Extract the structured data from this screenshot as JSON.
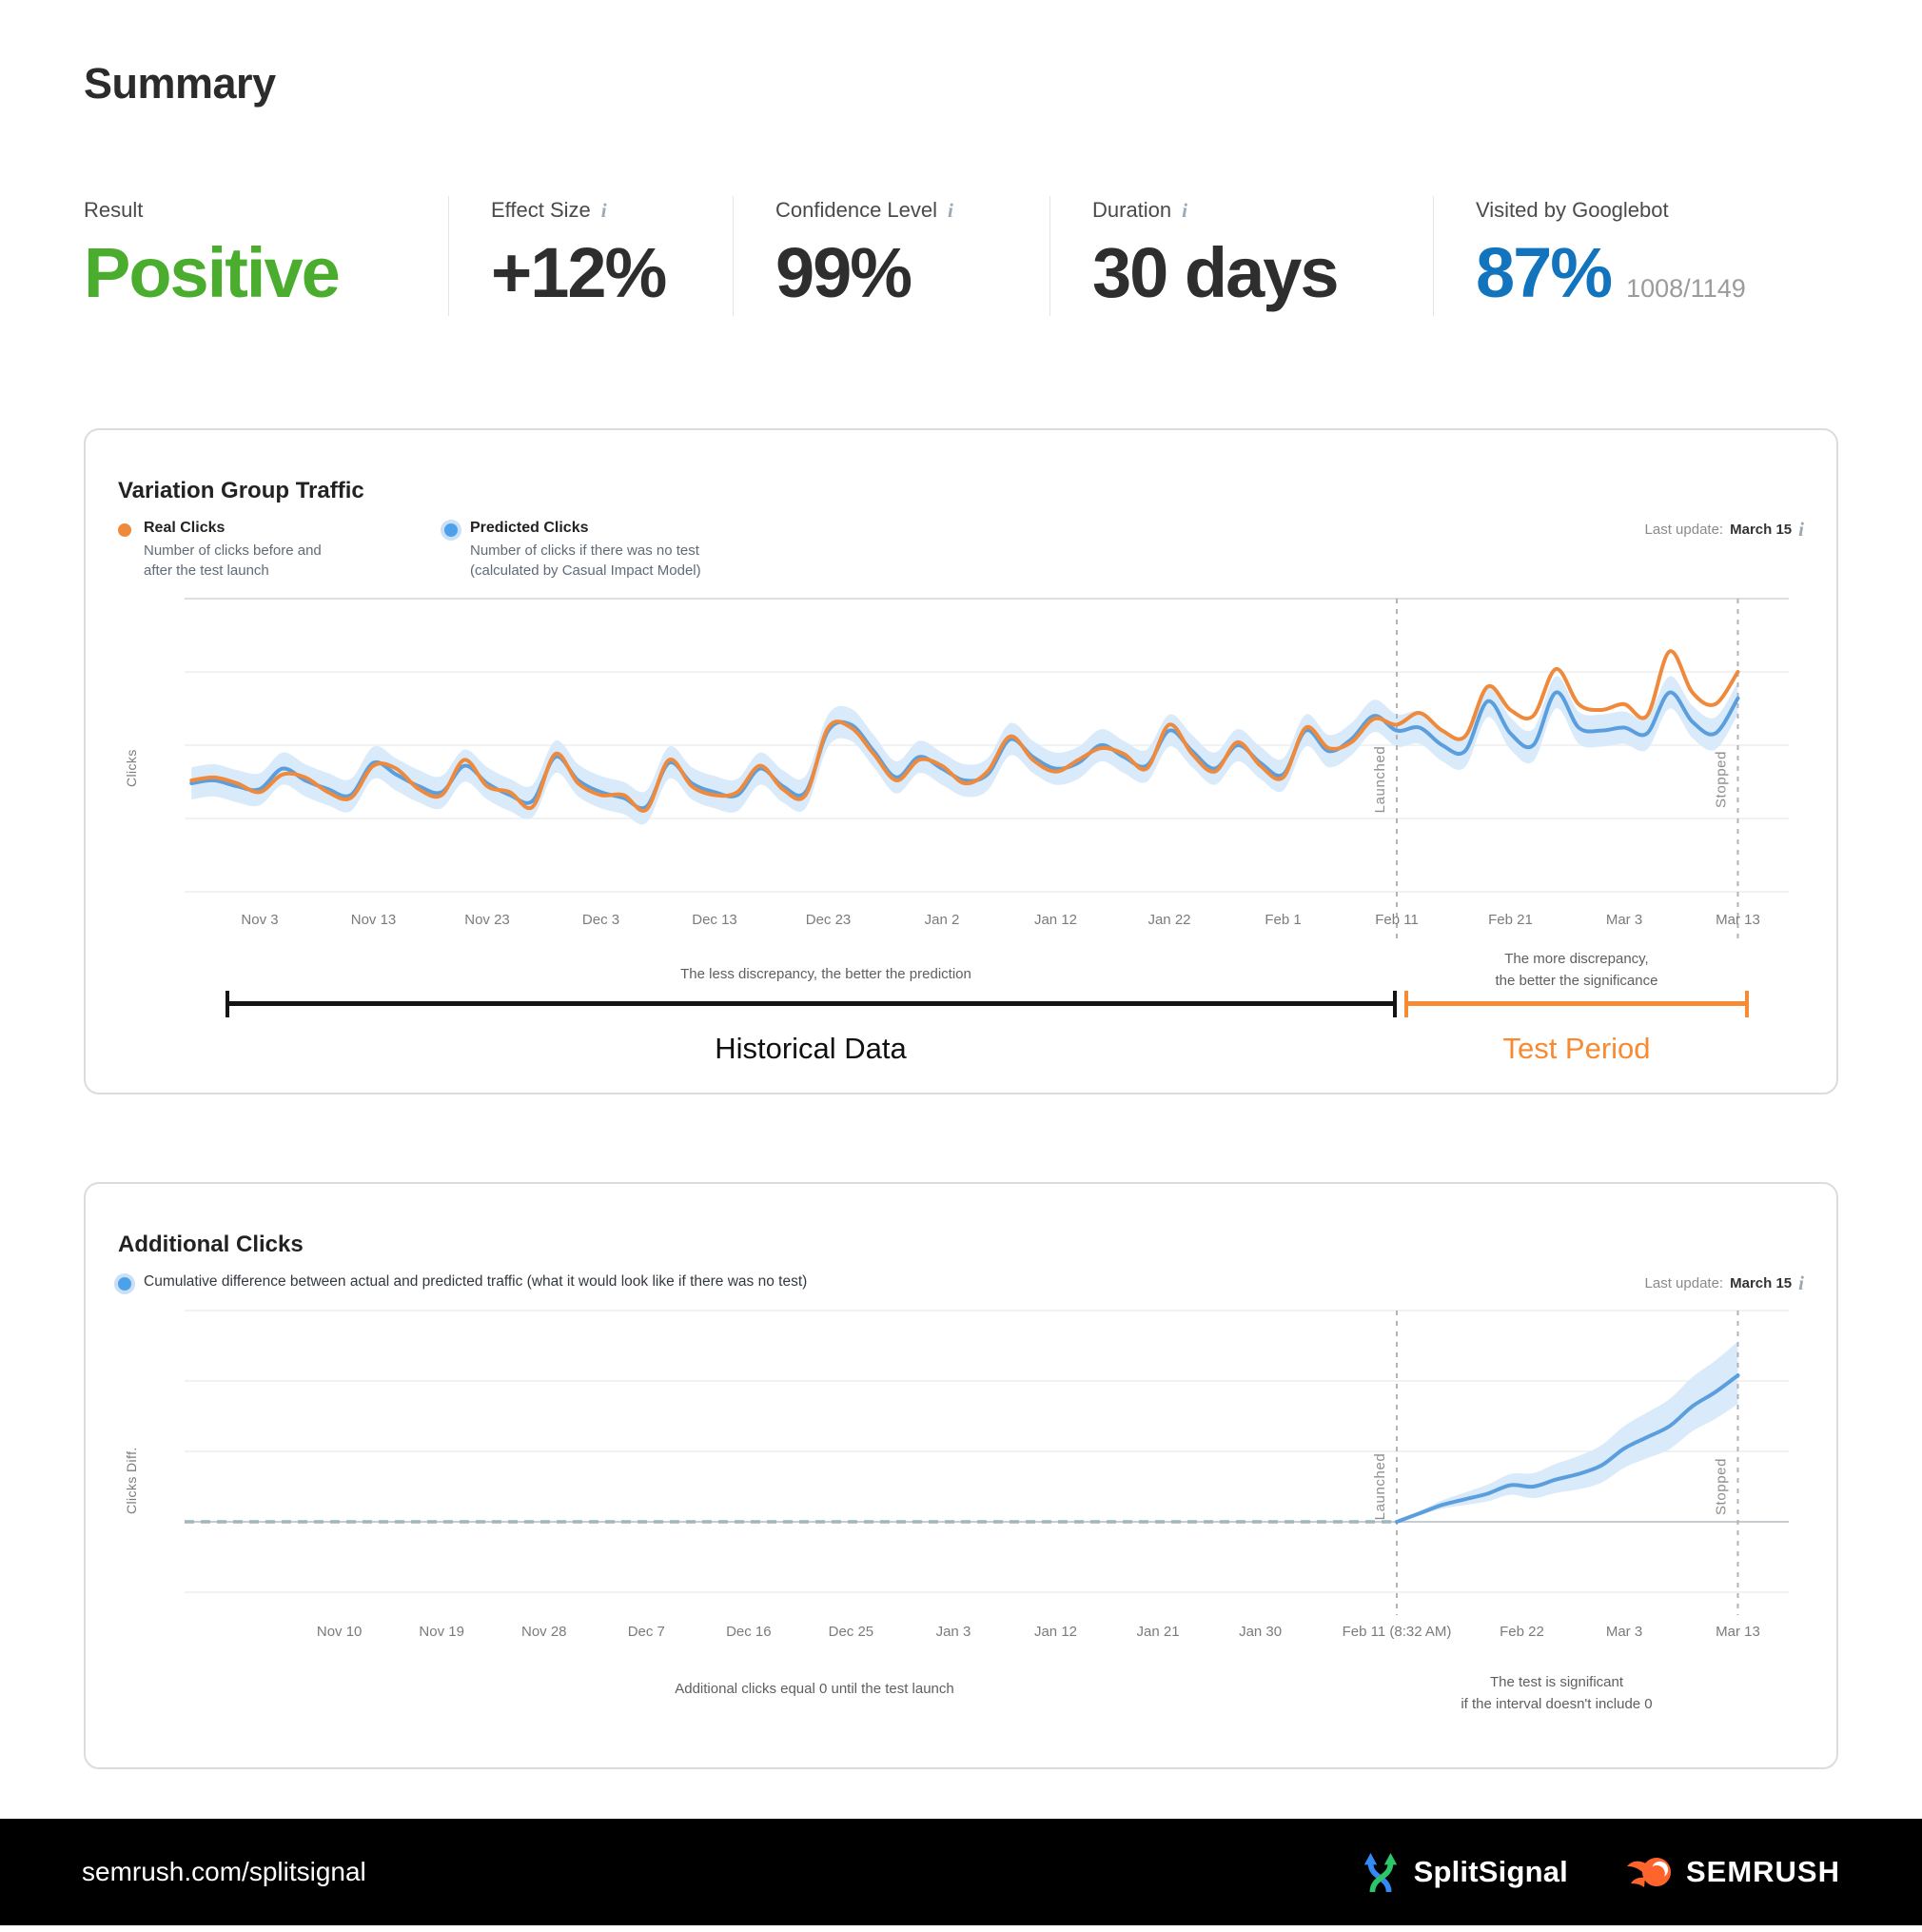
{
  "header": {
    "title": "Summary"
  },
  "icons": {
    "info": "i"
  },
  "metrics": [
    {
      "label": "Result",
      "value": "Positive"
    },
    {
      "label": "Effect Size",
      "value": "+12%"
    },
    {
      "label": "Confidence Level",
      "value": "99%"
    },
    {
      "label": "Duration",
      "value": "30 days"
    },
    {
      "label": "Visited by Googlebot",
      "value": "87%",
      "sub": "1008/1149"
    }
  ],
  "colors": {
    "positive_green": "#4aad2d",
    "googlebot_blue": "#1274bd",
    "real_clicks_orange": "#ef8a3c",
    "predicted_clicks_blue": "#5b9edd",
    "confidence_band": "#d9eafb",
    "test_period_orange": "#f78b33"
  },
  "card1": {
    "title": "Variation Group Traffic",
    "legend": [
      {
        "label": "Real Clicks",
        "desc": "Number of clicks before and after the test launch"
      },
      {
        "label": "Predicted Clicks",
        "desc": "Number of clicks if there was no test (calculated by Casual Impact Model)"
      }
    ],
    "last_update_label": "Last update:",
    "last_update_value": "March 15",
    "ylabel": "Clicks",
    "annotation_left": "The less discrepancy, the better the prediction",
    "annotation_right_1": "The more discrepancy,",
    "annotation_right_2": "the better the significance",
    "historical_label": "Historical Data",
    "test_label": "Test Period"
  },
  "card2": {
    "title": "Additional Clicks",
    "legend_desc": "Cumulative difference between actual and predicted traffic (what it would look like if there was no test)",
    "last_update_label": "Last update:",
    "last_update_value": "March 15",
    "ylabel": "Clicks Diff.",
    "annotation_center": "Additional clicks equal 0 until the test launch",
    "annotation_right_1": "The test is significant",
    "annotation_right_2": "if the interval doesn't include 0"
  },
  "footer": {
    "url": "semrush.com/splitsignal",
    "splitsignal": "SplitSignal",
    "semrush": "SEMRUSH"
  },
  "chart_data": [
    {
      "type": "line",
      "title": "Variation Group Traffic",
      "ylabel": "Clicks",
      "x_axis": "day offset (0 = Nov 3)",
      "ticks": [
        [
          0,
          "Nov 3"
        ],
        [
          10,
          "Nov 13"
        ],
        [
          20,
          "Nov 23"
        ],
        [
          30,
          "Dec 3"
        ],
        [
          40,
          "Dec 13"
        ],
        [
          50,
          "Dec 23"
        ],
        [
          60,
          "Jan 2"
        ],
        [
          70,
          "Jan 12"
        ],
        [
          80,
          "Jan 22"
        ],
        [
          90,
          "Feb 1"
        ],
        [
          100,
          "Feb 11"
        ],
        [
          110,
          "Feb 21"
        ],
        [
          120,
          "Mar 3"
        ],
        [
          130,
          "Mar 13"
        ]
      ],
      "launched": {
        "day": 100,
        "label": "Launched"
      },
      "stopped": {
        "day": 130,
        "label": "Stopped"
      },
      "band_color": "#d9eafb",
      "series": [
        {
          "name": "Real Clicks",
          "color": "#ef8a3c",
          "points": [
            [
              -6,
              38
            ],
            [
              -4,
              39
            ],
            [
              -2,
              37
            ],
            [
              0,
              34
            ],
            [
              2,
              40
            ],
            [
              4,
              39
            ],
            [
              6,
              34
            ],
            [
              8,
              32
            ],
            [
              10,
              43
            ],
            [
              12,
              42
            ],
            [
              14,
              35
            ],
            [
              16,
              33
            ],
            [
              18,
              45
            ],
            [
              20,
              36
            ],
            [
              22,
              34
            ],
            [
              24,
              29
            ],
            [
              26,
              47
            ],
            [
              28,
              37
            ],
            [
              30,
              33
            ],
            [
              32,
              33
            ],
            [
              34,
              28
            ],
            [
              36,
              45
            ],
            [
              38,
              36
            ],
            [
              40,
              33
            ],
            [
              42,
              34
            ],
            [
              44,
              43
            ],
            [
              46,
              35
            ],
            [
              48,
              33
            ],
            [
              50,
              56
            ],
            [
              52,
              56
            ],
            [
              54,
              47
            ],
            [
              56,
              38
            ],
            [
              58,
              45
            ],
            [
              60,
              43
            ],
            [
              62,
              37
            ],
            [
              64,
              41
            ],
            [
              66,
              53
            ],
            [
              68,
              45
            ],
            [
              70,
              41
            ],
            [
              72,
              45
            ],
            [
              74,
              49
            ],
            [
              76,
              47
            ],
            [
              78,
              42
            ],
            [
              80,
              57
            ],
            [
              82,
              47
            ],
            [
              84,
              41
            ],
            [
              86,
              51
            ],
            [
              88,
              43
            ],
            [
              90,
              39
            ],
            [
              92,
              56
            ],
            [
              94,
              49
            ],
            [
              96,
              51
            ],
            [
              98,
              59
            ],
            [
              100,
              57
            ],
            [
              102,
              61
            ],
            [
              104,
              55
            ],
            [
              106,
              53
            ],
            [
              108,
              70
            ],
            [
              110,
              62
            ],
            [
              112,
              60
            ],
            [
              114,
              76
            ],
            [
              116,
              64
            ],
            [
              118,
              62
            ],
            [
              120,
              64
            ],
            [
              122,
              60
            ],
            [
              124,
              82
            ],
            [
              126,
              68
            ],
            [
              128,
              64
            ],
            [
              130,
              75
            ]
          ]
        },
        {
          "name": "Predicted Clicks",
          "color": "#5b9edd",
          "band": 5.5,
          "points": [
            [
              -6,
              37
            ],
            [
              -4,
              38
            ],
            [
              -2,
              36
            ],
            [
              0,
              35
            ],
            [
              2,
              42
            ],
            [
              4,
              38
            ],
            [
              6,
              35
            ],
            [
              8,
              33
            ],
            [
              10,
              44
            ],
            [
              12,
              40
            ],
            [
              14,
              36
            ],
            [
              16,
              34
            ],
            [
              18,
              43
            ],
            [
              20,
              37
            ],
            [
              22,
              33
            ],
            [
              24,
              31
            ],
            [
              26,
              46
            ],
            [
              28,
              38
            ],
            [
              30,
              34
            ],
            [
              32,
              32
            ],
            [
              34,
              29
            ],
            [
              36,
              44
            ],
            [
              38,
              37
            ],
            [
              40,
              34
            ],
            [
              42,
              33
            ],
            [
              44,
              42
            ],
            [
              46,
              36
            ],
            [
              48,
              34
            ],
            [
              50,
              55
            ],
            [
              52,
              57
            ],
            [
              54,
              48
            ],
            [
              56,
              39
            ],
            [
              58,
              46
            ],
            [
              60,
              42
            ],
            [
              62,
              38
            ],
            [
              64,
              40
            ],
            [
              66,
              52
            ],
            [
              68,
              46
            ],
            [
              70,
              42
            ],
            [
              72,
              44
            ],
            [
              74,
              50
            ],
            [
              76,
              46
            ],
            [
              78,
              43
            ],
            [
              80,
              55
            ],
            [
              82,
              48
            ],
            [
              84,
              42
            ],
            [
              86,
              50
            ],
            [
              88,
              44
            ],
            [
              90,
              40
            ],
            [
              92,
              55
            ],
            [
              94,
              48
            ],
            [
              96,
              52
            ],
            [
              98,
              60
            ],
            [
              100,
              55
            ],
            [
              102,
              56
            ],
            [
              104,
              50
            ],
            [
              106,
              48
            ],
            [
              108,
              65
            ],
            [
              110,
              54
            ],
            [
              112,
              50
            ],
            [
              114,
              68
            ],
            [
              116,
              56
            ],
            [
              118,
              55
            ],
            [
              120,
              56
            ],
            [
              122,
              54
            ],
            [
              124,
              68
            ],
            [
              126,
              58
            ],
            [
              128,
              54
            ],
            [
              130,
              66
            ]
          ]
        }
      ]
    },
    {
      "type": "area-line",
      "title": "Additional Clicks",
      "ylabel": "Clicks Diff.",
      "x_axis": "day offset (0 = Nov 3)",
      "zero_until_launch": true,
      "ticks": [
        [
          7,
          "Nov 10"
        ],
        [
          16,
          "Nov 19"
        ],
        [
          25,
          "Nov 28"
        ],
        [
          34,
          "Dec 7"
        ],
        [
          43,
          "Dec 16"
        ],
        [
          52,
          "Dec 25"
        ],
        [
          61,
          "Jan 3"
        ],
        [
          70,
          "Jan 12"
        ],
        [
          79,
          "Jan 21"
        ],
        [
          88,
          "Jan 30"
        ],
        [
          100,
          "Feb 11 (8:32 AM)"
        ],
        [
          111,
          "Feb 22"
        ],
        [
          120,
          "Mar 3"
        ],
        [
          130,
          "Mar 13"
        ]
      ],
      "launched": {
        "day": 100,
        "label": "Launched"
      },
      "stopped": {
        "day": 130,
        "label": "Stopped"
      },
      "band_color": "#d9eafb",
      "band_up": 0.4,
      "band_down": 0.34,
      "series": [
        {
          "name": "Cumulative Clicks Difference",
          "color": "#5b9edd",
          "points": [
            [
              100,
              0
            ],
            [
              102,
              3
            ],
            [
              104,
              6
            ],
            [
              106,
              8
            ],
            [
              108,
              10
            ],
            [
              110,
              13
            ],
            [
              112,
              12.5
            ],
            [
              114,
              15
            ],
            [
              116,
              17
            ],
            [
              118,
              20
            ],
            [
              120,
              26
            ],
            [
              122,
              30
            ],
            [
              124,
              34
            ],
            [
              126,
              41
            ],
            [
              128,
              46
            ],
            [
              130,
              52
            ]
          ]
        }
      ]
    }
  ]
}
